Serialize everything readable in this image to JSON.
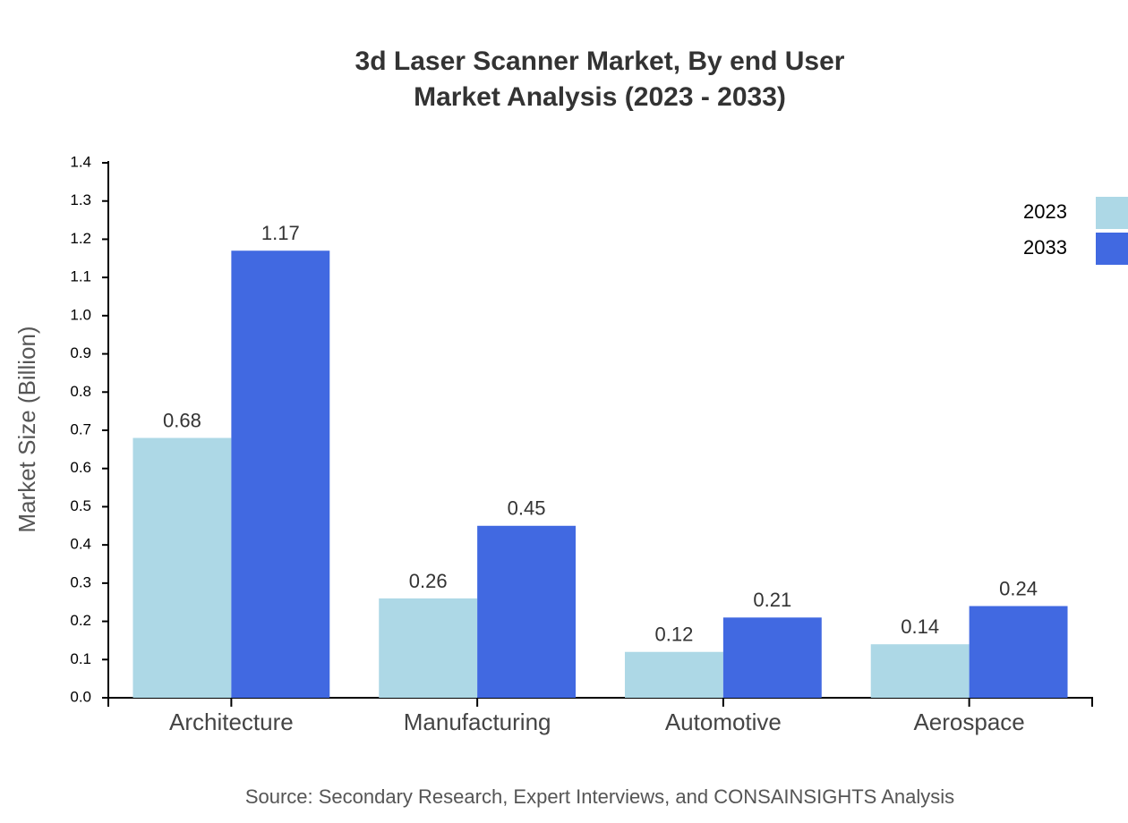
{
  "chart_data": {
    "type": "bar",
    "title": "3d Laser Scanner Market, By end User",
    "subtitle": "Market Analysis (2023 - 2033)",
    "y_label": "Market Size (Billion)",
    "source": "Source: Secondary Research, Expert Interviews, and CONSAINSIGHTS Analysis",
    "categories": [
      "Architecture",
      "Manufacturing",
      "Automotive",
      "Aerospace"
    ],
    "series": [
      {
        "name": "2023",
        "color": "#add8e6",
        "values": [
          0.68,
          0.26,
          0.12,
          0.14
        ]
      },
      {
        "name": "2033",
        "color": "#4169e1",
        "values": [
          1.17,
          0.45,
          0.21,
          0.24
        ]
      }
    ],
    "ylim": [
      0,
      1.4
    ],
    "yticks": [
      {
        "value": 0,
        "label": "0.0"
      },
      0.1,
      0.2,
      0.3,
      0.4,
      0.5,
      0.6,
      0.7,
      0.8,
      0.9,
      {
        "value": 1,
        "label": "1.0"
      },
      1.1,
      1.2,
      1.3,
      1.4
    ],
    "legend": "top-right",
    "grid": false
  }
}
